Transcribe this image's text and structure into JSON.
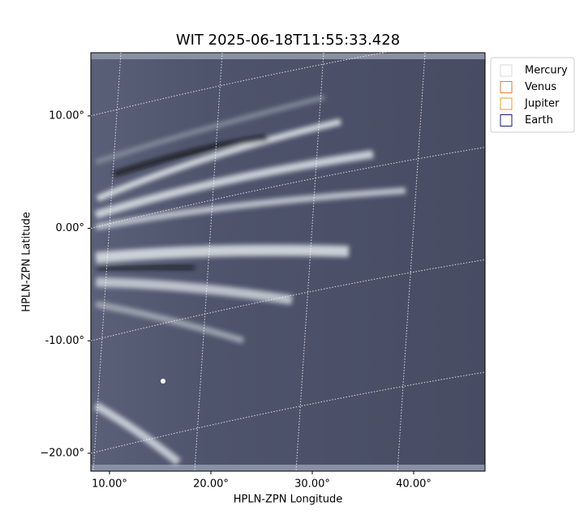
{
  "chart_data": {
    "type": "image",
    "title": "WIT 2025-06-18T11:55:33.428",
    "x_label": "HPLN-ZPN Longitude",
    "y_label": "HPLN-ZPN Latitude",
    "xlim": [
      8.16,
      47.04
    ],
    "ylim": [
      -21.59,
      15.62
    ],
    "xticks": [
      {
        "value": 10,
        "label": "10.00°"
      },
      {
        "value": 20,
        "label": "20.00°"
      },
      {
        "value": 30,
        "label": "30.00°"
      },
      {
        "value": 40,
        "label": "40.00°"
      }
    ],
    "yticks": [
      {
        "value": 10,
        "label": "10.00°"
      },
      {
        "value": 0,
        "label": "0.00°"
      },
      {
        "value": -10,
        "label": "-10.00°"
      },
      {
        "value": -20,
        "label": "−20.00°"
      }
    ],
    "grid": true,
    "legend_loc": "outside upper right",
    "series": [
      {
        "name": "Mercury",
        "color": "#d8d8d8"
      },
      {
        "name": "Venus",
        "color": "#e07a3a"
      },
      {
        "name": "Jupiter",
        "color": "#e0a21a"
      },
      {
        "name": "Earth",
        "color": "#1a1a80"
      }
    ]
  }
}
